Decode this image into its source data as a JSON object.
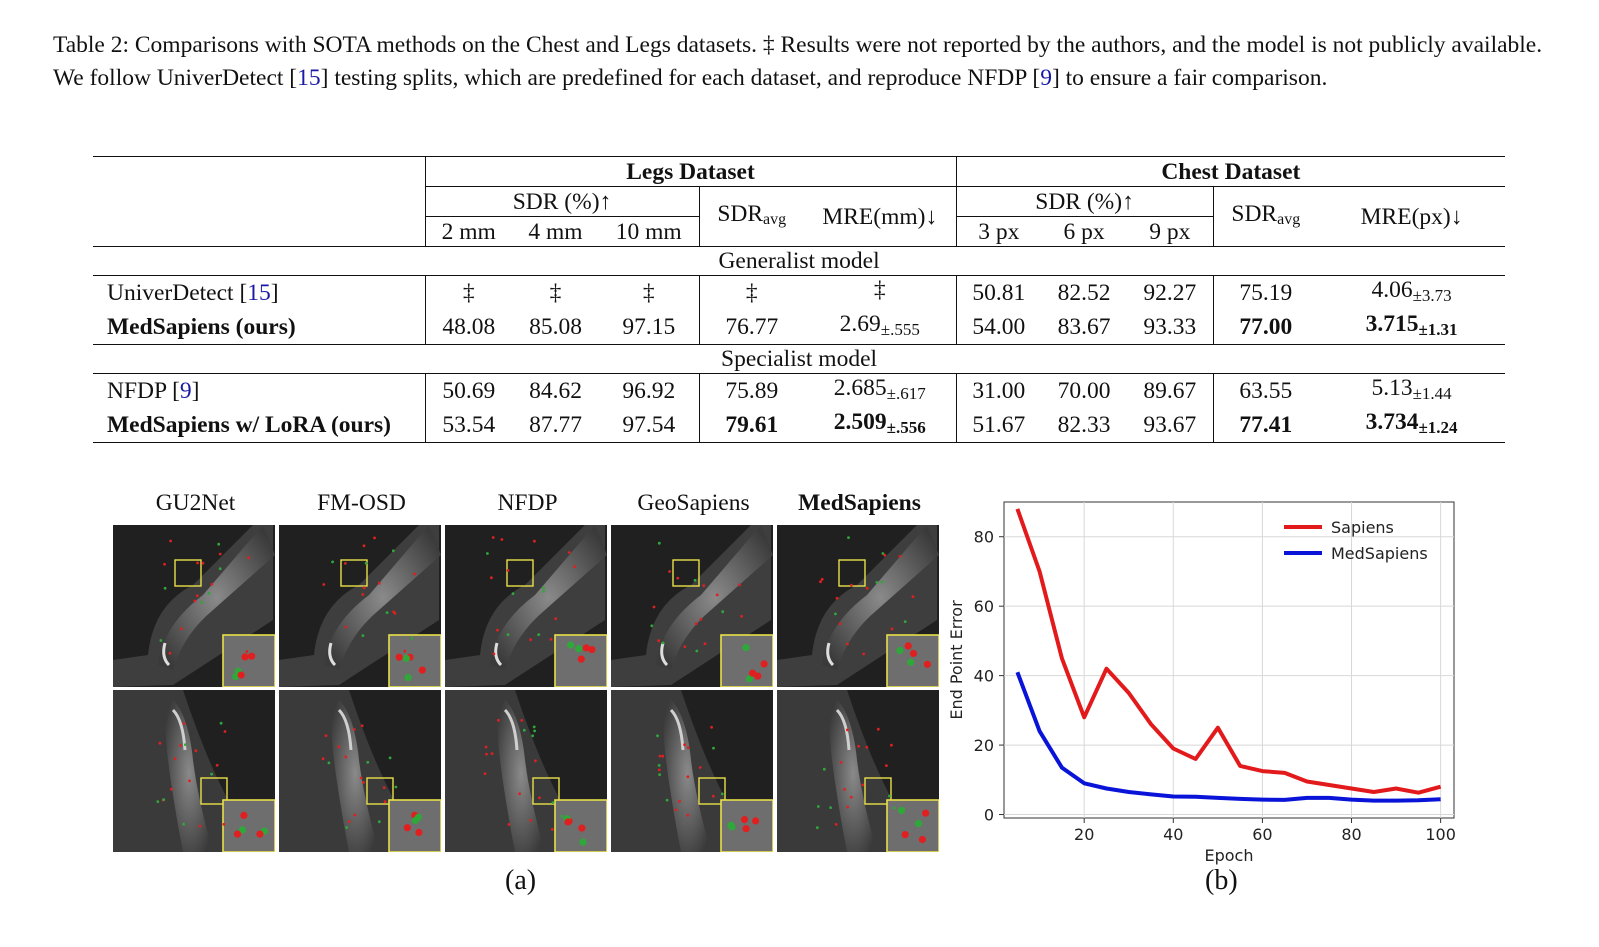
{
  "caption": {
    "lines": [
      "Table 2: Comparisons with SOTA methods on the Chest and Legs datasets. ‡ Results were not reported by the authors, and the model is not",
      "publicly available. We follow UniverDetect [",
      "15",
      "] testing splits, which are predefined for each dataset, and reproduce NFDP [",
      "9",
      "] to ensure a",
      "fair comparison."
    ]
  },
  "table": {
    "legs_header": "Legs Dataset",
    "chest_header": "Chest Dataset",
    "sdr_pct": "SDR (%)↑",
    "sdr_avg_base": "SDR",
    "sdr_avg_sub": "avg",
    "mre_mm": "MRE(mm)↓",
    "mre_px": "MRE(px)↓",
    "legs_cols": [
      "2 mm",
      "4 mm",
      "10 mm"
    ],
    "chest_cols": [
      "3 px",
      "6 px",
      "9 px"
    ],
    "generalist": "Generalist model",
    "specialist": "Specialist model",
    "rows": [
      {
        "name": "UniverDetect [",
        "ref": "15",
        "name_end": "]",
        "bold": false,
        "legs": [
          "‡",
          "‡",
          "‡"
        ],
        "legs_avg": "‡",
        "legs_mre": "‡",
        "legs_mre_pm": "",
        "chest": [
          "50.81",
          "82.52",
          "92.27"
        ],
        "chest_avg": "75.19",
        "chest_mre": "4.06",
        "chest_mre_pm": "±3.73"
      },
      {
        "name": "MedSapiens (ours)",
        "ref": "",
        "name_end": "",
        "bold": true,
        "legs": [
          "48.08",
          "85.08",
          "97.15"
        ],
        "legs_avg": "76.77",
        "legs_mre": "2.69",
        "legs_mre_pm": "±.555",
        "chest": [
          "54.00",
          "83.67",
          "93.33"
        ],
        "chest_avg": "77.00",
        "chest_mre": "3.715",
        "chest_mre_pm": "±1.31"
      },
      {
        "name": "NFDP [",
        "ref": "9",
        "name_end": "]",
        "bold": false,
        "legs": [
          "50.69",
          "84.62",
          "96.92"
        ],
        "legs_avg": "75.89",
        "legs_mre": "2.685",
        "legs_mre_pm": "±.617",
        "chest": [
          "31.00",
          "70.00",
          "89.67"
        ],
        "chest_avg": "63.55",
        "chest_mre": "5.13",
        "chest_mre_pm": "±1.44"
      },
      {
        "name": "MedSapiens w/ LoRA (ours)",
        "ref": "",
        "name_end": "",
        "bold": true,
        "legs": [
          "53.54",
          "87.77",
          "97.54"
        ],
        "legs_avg": "79.61",
        "legs_mre": "2.509",
        "legs_mre_pm": "±.556",
        "chest": [
          "51.67",
          "82.33",
          "93.67"
        ],
        "chest_avg": "77.41",
        "chest_mre": "3.734",
        "chest_mre_pm": "±1.24"
      }
    ]
  },
  "figure_a": {
    "columns": [
      "GU2Net",
      "FM-OSD",
      "NFDP",
      "GeoSapiens",
      "MedSapiens"
    ],
    "label": "(a)"
  },
  "figure_b": {
    "label": "(b)"
  },
  "chart_data": {
    "type": "line",
    "xlabel": "Epoch",
    "ylabel": "End Point Error",
    "xlim": [
      2,
      103
    ],
    "ylim": [
      -1,
      90
    ],
    "xticks": [
      20,
      40,
      60,
      80,
      100
    ],
    "yticks": [
      0,
      20,
      40,
      60,
      80
    ],
    "grid": true,
    "legend": "top-right",
    "x": [
      5,
      10,
      15,
      20,
      25,
      30,
      35,
      40,
      45,
      50,
      55,
      60,
      65,
      70,
      75,
      80,
      85,
      90,
      95,
      100
    ],
    "series": [
      {
        "name": "Sapiens",
        "color": "#e31a1c",
        "values": [
          88,
          70,
          45,
          28,
          42,
          35,
          26,
          19,
          16,
          25,
          14,
          12.5,
          12,
          9.5,
          8.5,
          7.5,
          6.5,
          7.5,
          6.3,
          8
        ]
      },
      {
        "name": "MedSapiens",
        "color": "#0a14d8",
        "values": [
          41,
          24,
          13.5,
          9,
          7.5,
          6.5,
          5.8,
          5.2,
          5.1,
          4.8,
          4.5,
          4.3,
          4.2,
          4.8,
          4.8,
          4.3,
          4,
          4,
          4.1,
          4.4
        ]
      }
    ]
  }
}
